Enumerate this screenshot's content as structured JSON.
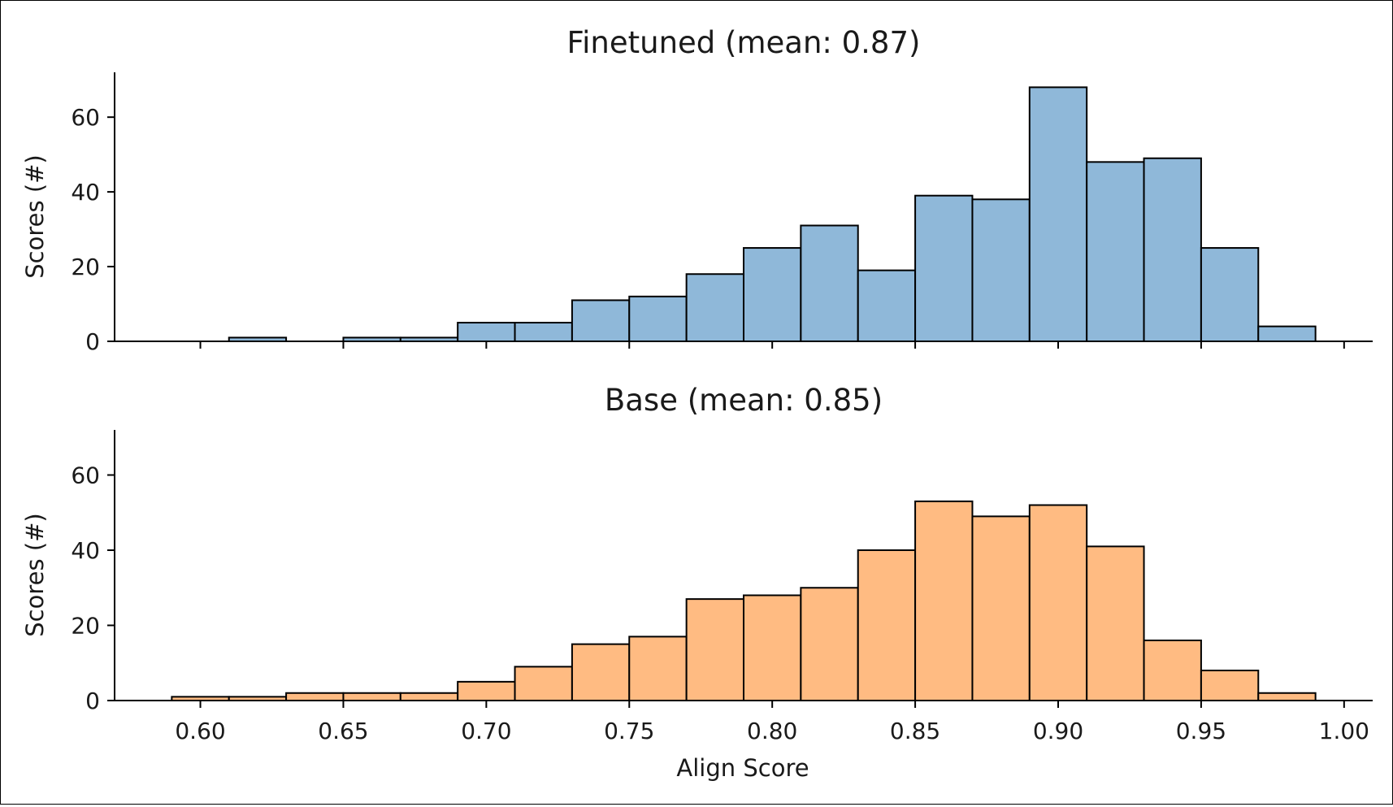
{
  "chart_data": [
    {
      "type": "bar",
      "title": "Finetuned (mean: 0.87)",
      "ylabel": "Scores (#)",
      "xlabel": "",
      "color": "#8fb8d9",
      "bin_edges": [
        0.59,
        0.61,
        0.63,
        0.65,
        0.67,
        0.69,
        0.71,
        0.73,
        0.75,
        0.77,
        0.79,
        0.81,
        0.83,
        0.85,
        0.87,
        0.89,
        0.91,
        0.93,
        0.95,
        0.97,
        0.99
      ],
      "values": [
        0,
        1,
        0,
        1,
        1,
        5,
        5,
        11,
        12,
        18,
        25,
        31,
        19,
        39,
        38,
        68,
        48,
        49,
        25,
        4
      ],
      "xlim": [
        0.57,
        1.01
      ],
      "ylim": [
        0,
        72
      ],
      "yticks": [
        "0",
        "20",
        "40",
        "60"
      ],
      "xticks": [
        "0.60",
        "0.65",
        "0.70",
        "0.75",
        "0.80",
        "0.85",
        "0.90",
        "0.95",
        "1.00"
      ],
      "show_xticklabels": false,
      "grid": false
    },
    {
      "type": "bar",
      "title": "Base (mean: 0.85)",
      "ylabel": "Scores (#)",
      "xlabel": "Align Score",
      "color": "#ffbb82",
      "bin_edges": [
        0.59,
        0.61,
        0.63,
        0.65,
        0.67,
        0.69,
        0.71,
        0.73,
        0.75,
        0.77,
        0.79,
        0.81,
        0.83,
        0.85,
        0.87,
        0.89,
        0.91,
        0.93,
        0.95,
        0.97,
        0.99
      ],
      "values": [
        1,
        1,
        2,
        2,
        2,
        5,
        9,
        15,
        17,
        27,
        28,
        30,
        40,
        53,
        49,
        52,
        41,
        16,
        8,
        2
      ],
      "xlim": [
        0.57,
        1.01
      ],
      "ylim": [
        0,
        72
      ],
      "yticks": [
        "0",
        "20",
        "40",
        "60"
      ],
      "xticks": [
        "0.60",
        "0.65",
        "0.70",
        "0.75",
        "0.80",
        "0.85",
        "0.90",
        "0.95",
        "1.00"
      ],
      "show_xticklabels": true,
      "grid": false
    }
  ]
}
